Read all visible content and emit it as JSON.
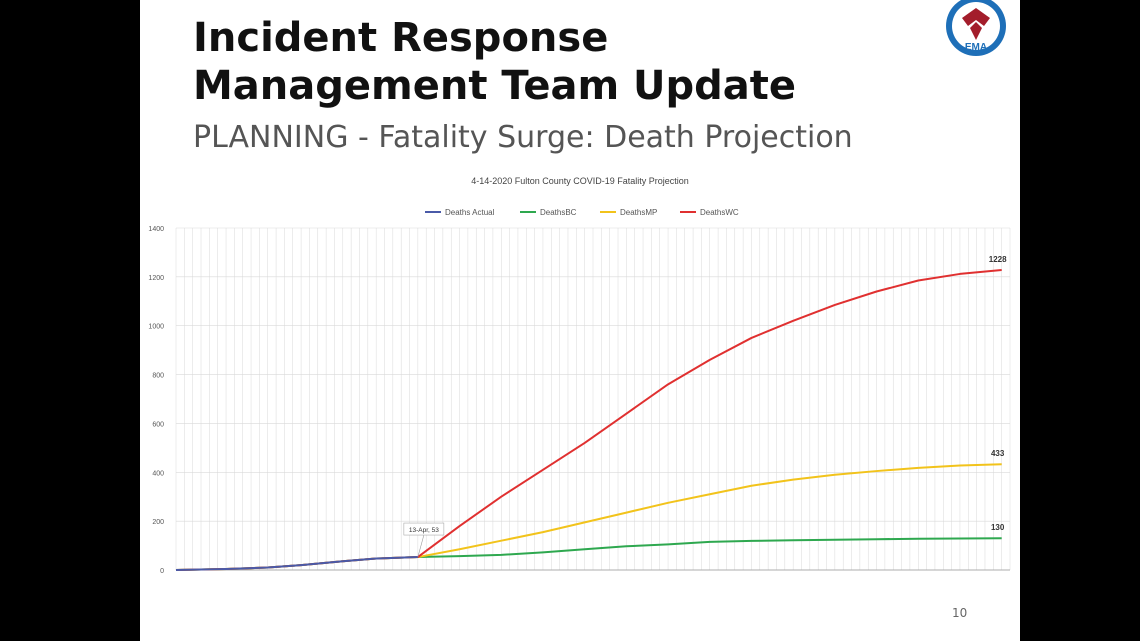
{
  "slide": {
    "title": "Incident Response Management Team Update",
    "subtitle": "PLANNING - Fatality Surge: Death Projection",
    "page_number": "10",
    "logo_text": "EMA"
  },
  "colors": {
    "deaths_actual": "#4a5aa8",
    "deaths_bc": "#2ea84f",
    "deaths_mp": "#f2c31b",
    "deaths_wc": "#e03030",
    "grid": "#d9d9d9"
  },
  "chart_data": {
    "type": "line",
    "title": "4-14-2020 Fulton County COVID-19 Fatality Projection",
    "legend_position": "top",
    "grid": true,
    "ylim": [
      0,
      1400
    ],
    "y_ticks": [
      0,
      200,
      400,
      600,
      800,
      1000,
      1200,
      1400
    ],
    "x_start_index": 0,
    "callout": "13-Apr, 53",
    "series": [
      {
        "name": "Deaths Actual",
        "color": "#4a5aa8",
        "x": [
          0,
          6,
          11,
          15,
          20,
          24,
          29
        ],
        "y": [
          0,
          4,
          10,
          20,
          36,
          47,
          53
        ]
      },
      {
        "name": "DeathsBC",
        "color": "#2ea84f",
        "x": [
          0,
          6,
          11,
          15,
          20,
          24,
          29,
          34,
          39,
          44,
          49,
          54,
          59,
          64,
          69,
          74,
          79,
          84,
          89,
          94,
          99
        ],
        "y": [
          0,
          4,
          10,
          20,
          36,
          47,
          53,
          57,
          62,
          72,
          85,
          97,
          105,
          115,
          119,
          122,
          124,
          126,
          128,
          129,
          130
        ]
      },
      {
        "name": "DeathsMP",
        "color": "#f2c31b",
        "x": [
          0,
          6,
          11,
          15,
          20,
          24,
          29,
          34,
          39,
          44,
          49,
          54,
          59,
          64,
          69,
          74,
          79,
          84,
          89,
          94,
          99
        ],
        "y": [
          0,
          4,
          10,
          20,
          36,
          47,
          53,
          85,
          120,
          155,
          195,
          235,
          275,
          310,
          345,
          370,
          390,
          405,
          418,
          428,
          433
        ]
      },
      {
        "name": "DeathsWC",
        "color": "#e03030",
        "x": [
          0,
          6,
          11,
          15,
          20,
          24,
          29,
          34,
          39,
          44,
          49,
          54,
          59,
          64,
          69,
          74,
          79,
          84,
          89,
          94,
          99
        ],
        "y": [
          0,
          4,
          10,
          20,
          36,
          47,
          53,
          180,
          300,
          410,
          520,
          640,
          760,
          860,
          950,
          1020,
          1085,
          1140,
          1185,
          1212,
          1228
        ]
      }
    ],
    "end_labels": [
      {
        "series": "DeathsWC",
        "text": "1228"
      },
      {
        "series": "DeathsMP",
        "text": "433"
      },
      {
        "series": "DeathsBC",
        "text": "130"
      }
    ]
  }
}
